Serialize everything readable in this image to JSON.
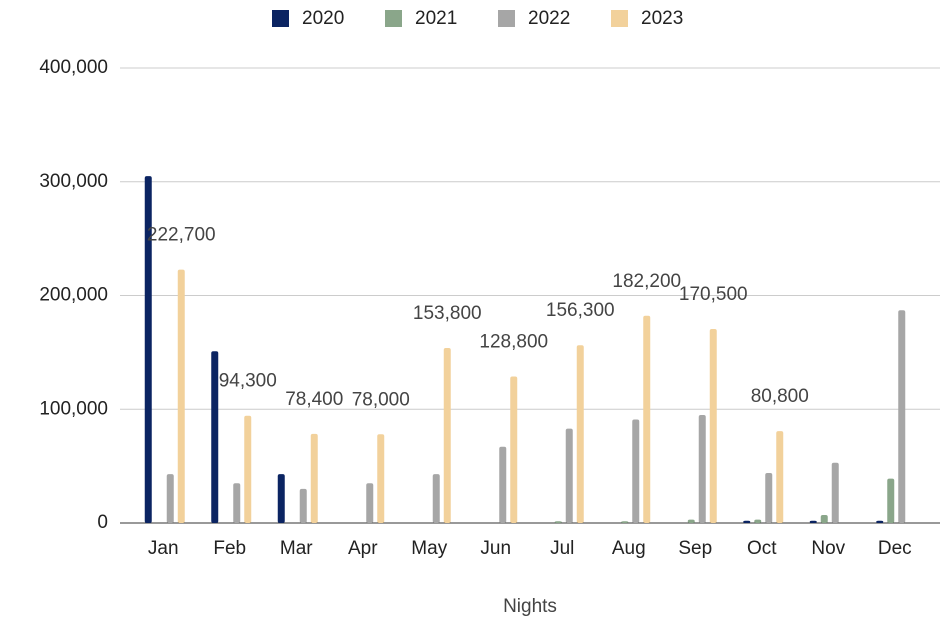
{
  "chart_data": {
    "type": "bar",
    "categories": [
      "Jan",
      "Feb",
      "Mar",
      "Apr",
      "May",
      "Jun",
      "Jul",
      "Aug",
      "Sep",
      "Oct",
      "Nov",
      "Dec"
    ],
    "series": [
      {
        "name": "2020",
        "color": "#0b2462",
        "values": [
          305000,
          151000,
          43000,
          null,
          null,
          null,
          null,
          null,
          null,
          2000,
          2000,
          2000
        ]
      },
      {
        "name": "2021",
        "color": "#8aa68a",
        "values": [
          null,
          null,
          null,
          null,
          null,
          null,
          1500,
          1500,
          3000,
          3000,
          7000,
          39000
        ]
      },
      {
        "name": "2022",
        "color": "#a6a6a6",
        "values": [
          43000,
          35000,
          30000,
          35000,
          43000,
          67000,
          83000,
          91000,
          95000,
          44000,
          53000,
          187000
        ]
      },
      {
        "name": "2023",
        "color": "#f2d19b",
        "values": [
          222700,
          94300,
          78400,
          78000,
          153800,
          128800,
          156300,
          182200,
          170500,
          80800,
          null,
          null
        ],
        "value_labels": [
          "222,700",
          "94,300",
          "78,400",
          "78,000",
          "153,800",
          "128,800",
          "156,300",
          "182,200",
          "170,500",
          "80,800",
          null,
          null
        ]
      }
    ],
    "x_label": "Nights",
    "ylim": [
      0,
      400000
    ],
    "yticks": [
      0,
      {
        "value": 100000,
        "label": "100,000"
      },
      {
        "value": 200000,
        "label": "200,000"
      },
      {
        "value": 300000,
        "label": "300,000"
      },
      {
        "value": 400000,
        "label": "400,000"
      }
    ],
    "grid": true,
    "legend": "top"
  }
}
